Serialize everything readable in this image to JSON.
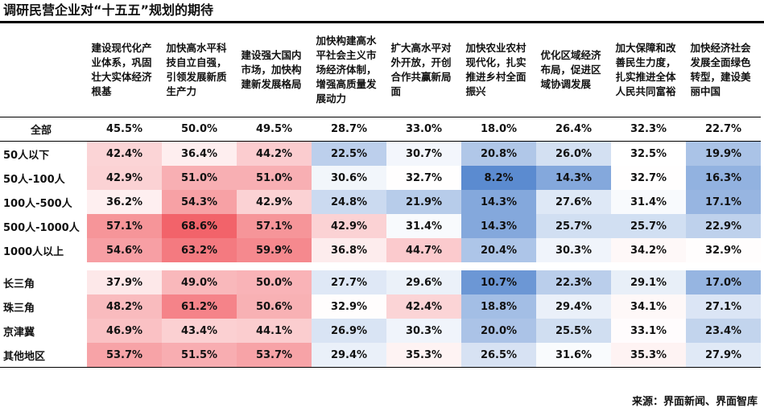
{
  "title": "调研民营企业对“十五五”规划的期待",
  "source": "来源：界面新闻、界面智库",
  "chart_data": {
    "type": "heatmap",
    "columns": [
      "建设现代化产业体系，巩固壮大实体经济根基",
      "加快高水平科技自立自强，引领发展新质生产力",
      "建设强大国内市场，加快构建新发展格局",
      "加快构建高水平社会主义市场经济体制，增强高质量发展动力",
      "扩大高水平对外开放，开创合作共赢新局面",
      "加快农业农村现代化，扎实推进乡村全面振兴",
      "优化区域经济布局，促进区域协调发展",
      "加大保障和改善民生力度，扎实推进全体人民共同富裕",
      "加快经济社会发展全面绿色转型，建设美丽中国"
    ],
    "total": {
      "label": "全部",
      "values": [
        "45.5%",
        "50.0%",
        "49.5%",
        "28.7%",
        "33.0%",
        "18.0%",
        "26.4%",
        "32.3%",
        "22.7%"
      ]
    },
    "groups": [
      {
        "rows": [
          {
            "label": "50人以下",
            "values": [
              "42.4%",
              "36.4%",
              "44.2%",
              "22.5%",
              "30.7%",
              "20.8%",
              "26.0%",
              "32.5%",
              "19.9%"
            ]
          },
          {
            "label": "50人-100人",
            "values": [
              "42.9%",
              "51.0%",
              "51.0%",
              "30.6%",
              "32.7%",
              "8.2%",
              "14.3%",
              "32.7%",
              "16.3%"
            ]
          },
          {
            "label": "100人-500人",
            "values": [
              "36.2%",
              "54.3%",
              "42.9%",
              "24.8%",
              "21.9%",
              "14.3%",
              "27.6%",
              "31.4%",
              "17.1%"
            ]
          },
          {
            "label": "500人-1000人",
            "values": [
              "57.1%",
              "68.6%",
              "57.1%",
              "42.9%",
              "31.4%",
              "14.3%",
              "25.7%",
              "25.7%",
              "22.9%"
            ]
          },
          {
            "label": "1000人以上",
            "values": [
              "54.6%",
              "63.2%",
              "59.9%",
              "36.8%",
              "44.7%",
              "20.4%",
              "30.3%",
              "34.2%",
              "32.9%"
            ]
          }
        ]
      },
      {
        "rows": [
          {
            "label": "长三角",
            "values": [
              "37.9%",
              "49.0%",
              "50.0%",
              "27.7%",
              "29.6%",
              "10.7%",
              "22.3%",
              "29.1%",
              "17.0%"
            ]
          },
          {
            "label": "珠三角",
            "values": [
              "48.2%",
              "61.2%",
              "50.6%",
              "32.9%",
              "42.4%",
              "18.8%",
              "29.4%",
              "34.1%",
              "27.1%"
            ]
          },
          {
            "label": "京津冀",
            "values": [
              "46.9%",
              "43.4%",
              "44.1%",
              "26.9%",
              "30.3%",
              "20.0%",
              "25.5%",
              "33.1%",
              "23.4%"
            ]
          },
          {
            "label": "其他地区",
            "values": [
              "53.7%",
              "51.5%",
              "53.7%",
              "29.4%",
              "35.3%",
              "26.5%",
              "31.6%",
              "35.3%",
              "27.9%"
            ]
          }
        ]
      }
    ],
    "color_scale": {
      "low": "#5b8bd0",
      "mid": "#ffffff",
      "high": "#f2636a"
    }
  }
}
